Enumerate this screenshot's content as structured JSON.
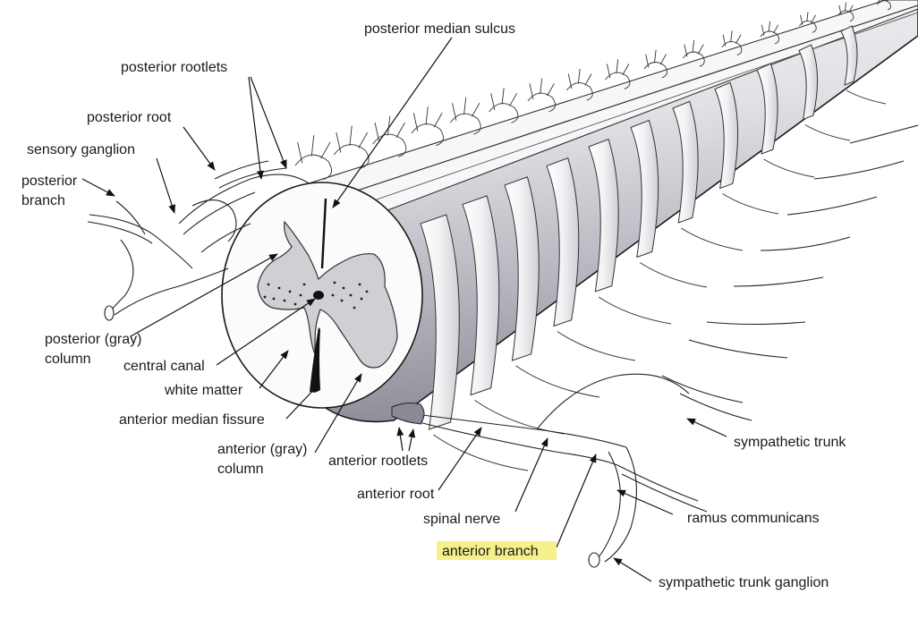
{
  "labels": {
    "posterior_median_sulcus": "posterior median sulcus",
    "posterior_rootlets": "posterior rootlets",
    "posterior_root": "posterior root",
    "sensory_ganglion": "sensory ganglion",
    "posterior_branch_line1": "posterior",
    "posterior_branch_line2": "branch",
    "posterior_gray_column_line1": "posterior (gray)",
    "posterior_gray_column_line2": "column",
    "central_canal": "central canal",
    "white_matter": "white matter",
    "anterior_median_fissure": "anterior median fissure",
    "anterior_gray_column_line1": "anterior (gray)",
    "anterior_gray_column_line2": "column",
    "anterior_rootlets": "anterior rootlets",
    "anterior_root": "anterior root",
    "spinal_nerve": "spinal nerve",
    "anterior_branch": "anterior branch",
    "sympathetic_trunk": "sympathetic trunk",
    "ramus_communicans": "ramus communicans",
    "sympathetic_trunk_ganglion": "sympathetic trunk ganglion"
  },
  "highlighted_label": "anterior_branch",
  "colors": {
    "highlight": "#f5f08a",
    "gray_matter": "#cfcfd4",
    "cord_shade": "#9a9aa6"
  }
}
